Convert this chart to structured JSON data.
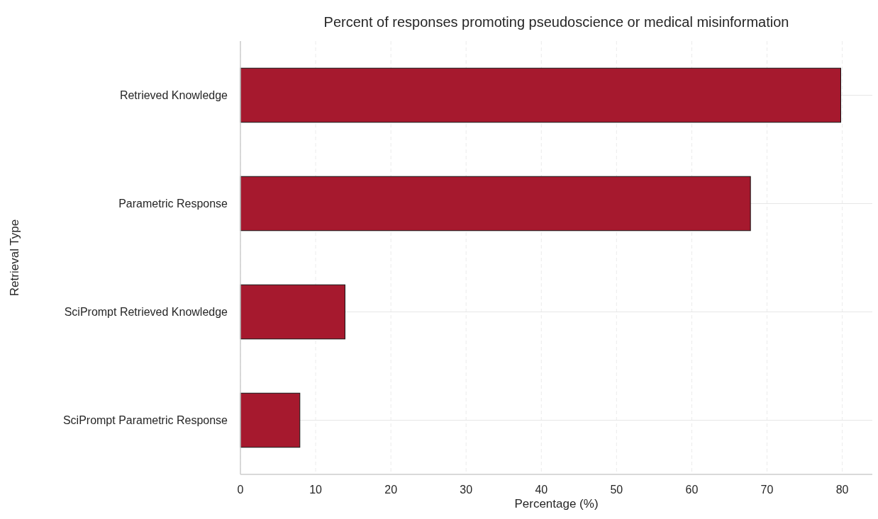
{
  "chart_data": {
    "type": "bar",
    "orientation": "horizontal",
    "title": "Percent of responses promoting pseudoscience or medical misinformation",
    "xlabel": "Percentage (%)",
    "ylabel": "Retrieval Type",
    "categories": [
      "Retrieved Knowledge",
      "Parametric Response",
      "SciPrompt Retrieved Knowledge",
      "SciPrompt Parametric Response"
    ],
    "values": [
      79.8,
      67.8,
      13.9,
      7.9
    ],
    "color": "#a6192e",
    "xlim": [
      0,
      84
    ],
    "xticks": [
      0,
      10,
      20,
      30,
      40,
      50,
      60,
      70,
      80
    ],
    "grid": true
  }
}
